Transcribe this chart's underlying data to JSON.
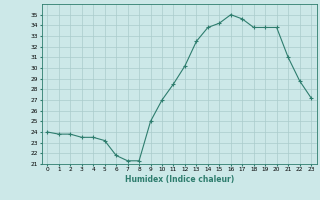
{
  "x": [
    0,
    1,
    2,
    3,
    4,
    5,
    6,
    7,
    8,
    9,
    10,
    11,
    12,
    13,
    14,
    15,
    16,
    17,
    18,
    19,
    20,
    21,
    22,
    23
  ],
  "y": [
    24.0,
    23.8,
    23.8,
    23.5,
    23.5,
    23.2,
    21.8,
    21.3,
    21.3,
    25.0,
    27.0,
    28.5,
    30.2,
    32.5,
    33.8,
    34.2,
    35.0,
    34.6,
    33.8,
    33.8,
    33.8,
    31.0,
    28.8,
    27.2
  ],
  "line_color": "#2e7d6e",
  "marker": "+",
  "background_color": "#cce8e8",
  "grid_color": "#aacccc",
  "xlabel": "Humidex (Indice chaleur)",
  "xlim": [
    -0.5,
    23.5
  ],
  "ylim": [
    21.0,
    36.0
  ],
  "yticks": [
    21,
    22,
    23,
    24,
    25,
    26,
    27,
    28,
    29,
    30,
    31,
    32,
    33,
    34,
    35
  ],
  "xticks": [
    0,
    1,
    2,
    3,
    4,
    5,
    6,
    7,
    8,
    9,
    10,
    11,
    12,
    13,
    14,
    15,
    16,
    17,
    18,
    19,
    20,
    21,
    22,
    23
  ]
}
